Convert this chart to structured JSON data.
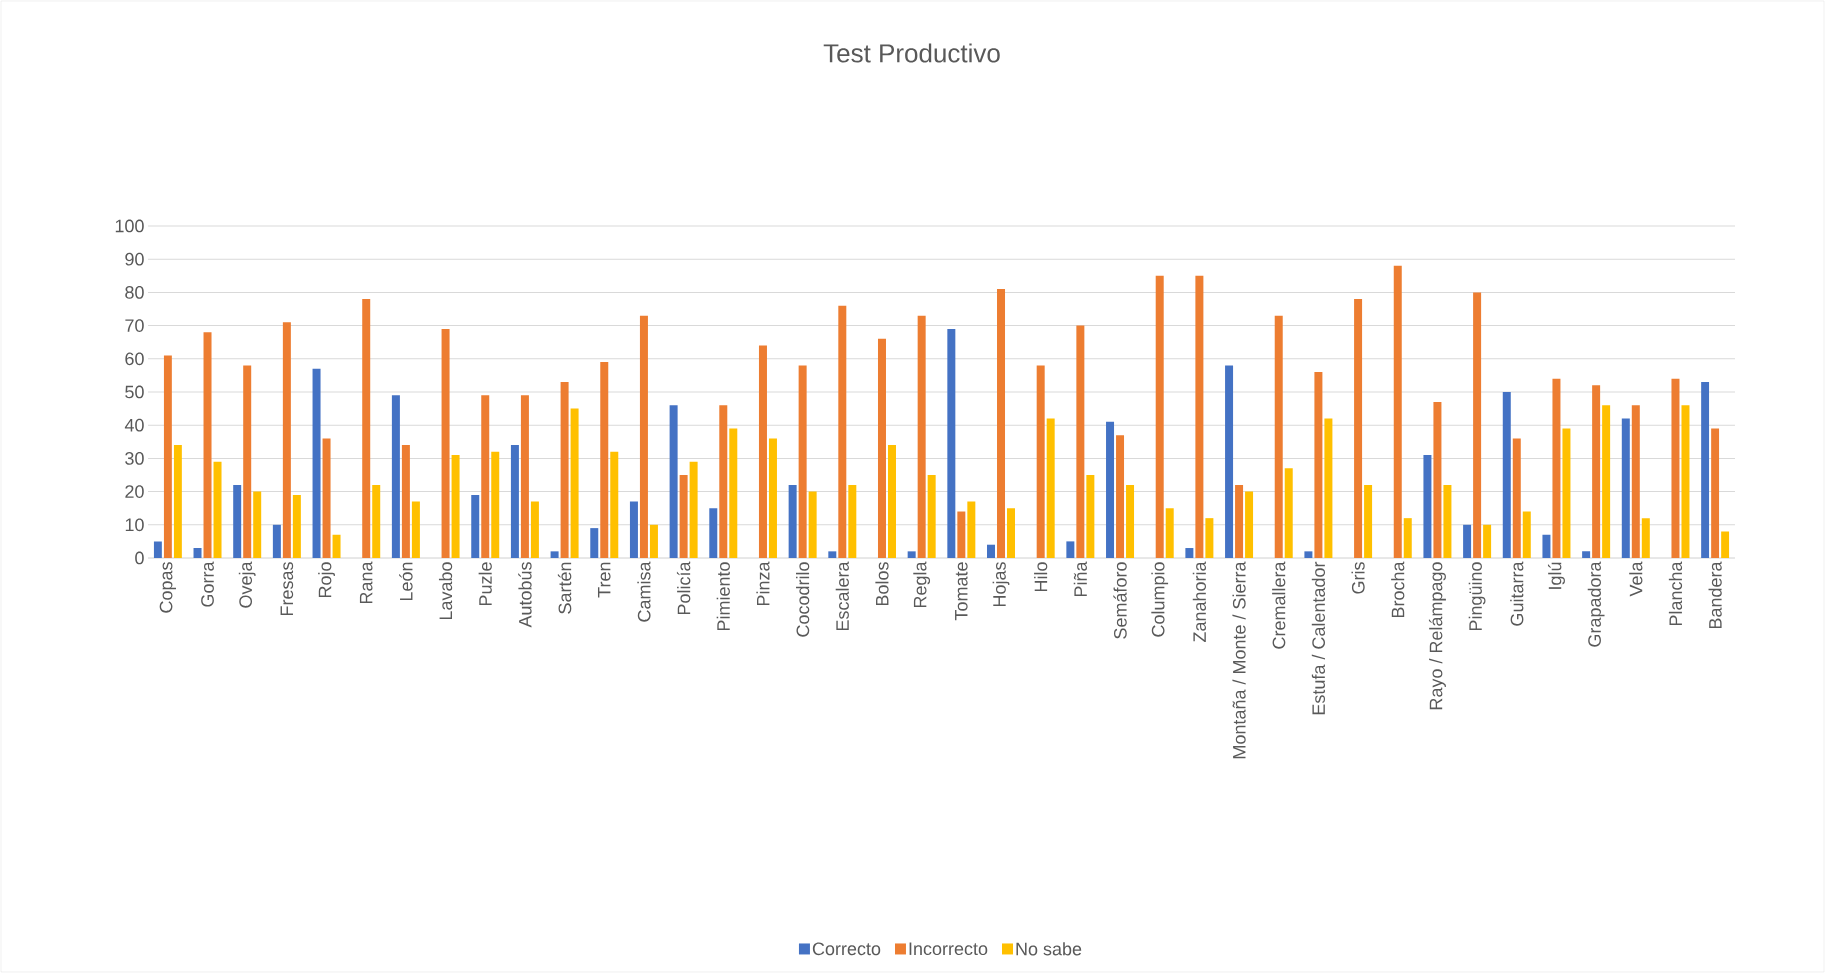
{
  "chart_data": {
    "type": "bar",
    "title": "Test Productivo",
    "categories": [
      "Copas",
      "Gorra",
      "Oveja",
      "Fresas",
      "Rojo",
      "Rana",
      "León",
      "Lavabo",
      "Puzle",
      "Autobús",
      "Sartén",
      "Tren",
      "Camisa",
      "Policía",
      "Pimiento",
      "Pinza",
      "Cocodrilo",
      "Escalera",
      "Bolos",
      "Regla",
      "Tomate",
      "Hojas",
      "Hilo",
      "Piña",
      "Semáforo",
      "Columpio",
      "Zanahoria",
      "Montaña / Monte / Sierra",
      "Cremallera",
      "Estufa / Calentador",
      "Gris",
      "Brocha",
      "Rayo / Relámpago",
      "Pingüino",
      "Guitarra",
      "Iglú",
      "Grapadora",
      "Vela",
      "Plancha",
      "Bandera"
    ],
    "series": [
      {
        "name": "Correcto",
        "color": "#4472c4",
        "values": [
          5,
          3,
          22,
          10,
          57,
          0,
          49,
          0,
          19,
          34,
          2,
          9,
          17,
          46,
          15,
          0,
          22,
          2,
          0,
          2,
          69,
          4,
          0,
          5,
          41,
          0,
          3,
          58,
          0,
          2,
          0,
          0,
          31,
          10,
          50,
          7,
          2,
          42,
          0,
          53
        ]
      },
      {
        "name": "Incorrecto",
        "color": "#ed7d31",
        "values": [
          61,
          68,
          58,
          71,
          36,
          78,
          34,
          69,
          49,
          49,
          53,
          59,
          73,
          25,
          46,
          64,
          58,
          76,
          66,
          73,
          14,
          81,
          58,
          70,
          37,
          85,
          85,
          22,
          73,
          56,
          78,
          88,
          47,
          80,
          36,
          54,
          52,
          46,
          54,
          39
        ]
      },
      {
        "name": "No sabe",
        "color": "#ffc000",
        "values": [
          34,
          29,
          20,
          19,
          7,
          22,
          17,
          31,
          32,
          17,
          45,
          32,
          10,
          29,
          39,
          36,
          20,
          22,
          34,
          25,
          17,
          15,
          42,
          25,
          22,
          15,
          12,
          20,
          27,
          42,
          22,
          12,
          22,
          10,
          14,
          39,
          46,
          12,
          46,
          8
        ]
      }
    ],
    "ylim": [
      0,
      100
    ],
    "yticks": [
      0,
      10,
      20,
      30,
      40,
      50,
      60,
      70,
      80,
      90,
      100
    ],
    "grid": "y",
    "legend": "bottom"
  }
}
